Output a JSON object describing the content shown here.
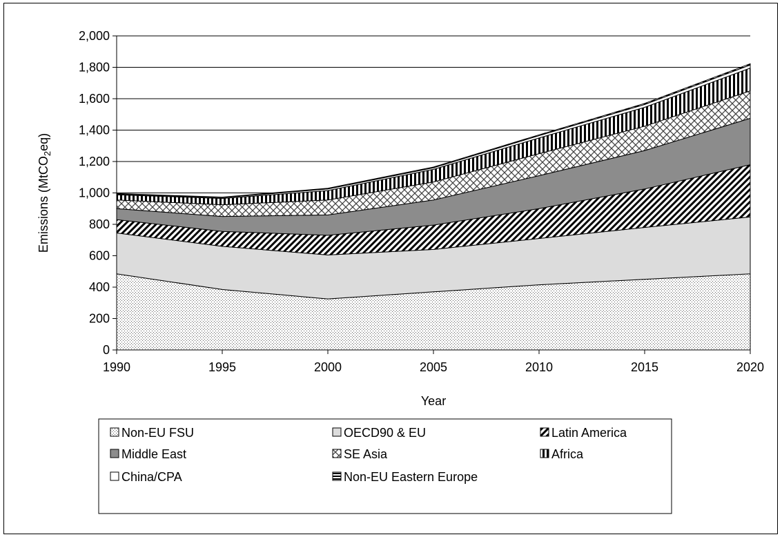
{
  "chart_data": {
    "type": "area",
    "stacked": true,
    "title": "",
    "xlabel": "Year",
    "ylabel_parts": [
      "Emissions (MtCO",
      "2",
      "eq)"
    ],
    "x": [
      1990,
      1995,
      2000,
      2005,
      2010,
      2015,
      2020
    ],
    "xlim": [
      1990,
      2020
    ],
    "ylim": [
      0,
      2000
    ],
    "yticks": [
      0,
      200,
      400,
      600,
      800,
      1000,
      1200,
      1400,
      1600,
      1800,
      2000
    ],
    "ytick_labels": [
      "0",
      "200",
      "400",
      "600",
      "800",
      "1,000",
      "1,200",
      "1,400",
      "1,600",
      "1,800",
      "2,000"
    ],
    "xticks": [
      1990,
      1995,
      2000,
      2005,
      2010,
      2015,
      2020
    ],
    "xtick_labels": [
      "1990",
      "1995",
      "2000",
      "2005",
      "2010",
      "2015",
      "2020"
    ],
    "grid": "horizontal",
    "legend_position": "bottom",
    "series": [
      {
        "name": "Non-EU FSU",
        "values": [
          485,
          385,
          325,
          370,
          415,
          450,
          485
        ],
        "pattern": "dots"
      },
      {
        "name": "OECD90 & EU",
        "values": [
          260,
          275,
          280,
          270,
          295,
          330,
          362
        ],
        "pattern": "light"
      },
      {
        "name": "Latin America",
        "values": [
          85,
          95,
          125,
          155,
          190,
          245,
          333
        ],
        "pattern": "diag"
      },
      {
        "name": "Middle East",
        "values": [
          70,
          95,
          130,
          160,
          210,
          245,
          295
        ],
        "pattern": "gray"
      },
      {
        "name": "SE Asia",
        "values": [
          55,
          75,
          95,
          115,
          140,
          155,
          175
        ],
        "pattern": "cross"
      },
      {
        "name": "Africa",
        "values": [
          33,
          40,
          60,
          80,
          100,
          120,
          145
        ],
        "pattern": "vert"
      },
      {
        "name": "China/CPA",
        "values": [
          5,
          5,
          10,
          10,
          15,
          18,
          20
        ],
        "pattern": "white"
      },
      {
        "name": "Non-EU Eastern Europe",
        "values": [
          3,
          3,
          5,
          5,
          5,
          7,
          8
        ],
        "pattern": "horiz"
      }
    ]
  }
}
